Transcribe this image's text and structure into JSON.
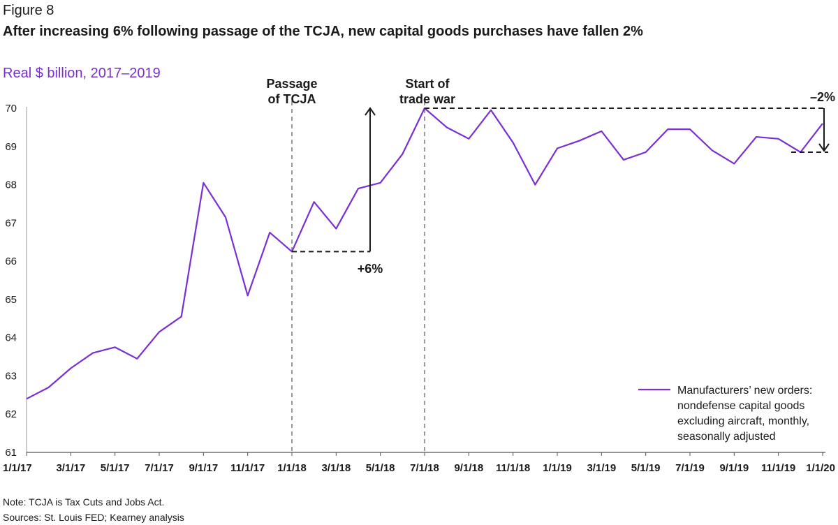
{
  "figure_label": "Figure 8",
  "title": "After increasing 6% following passage of the TCJA, new capital goods purchases have fallen 2%",
  "unit_label": "Real $ billion, 2017–2019",
  "notes": {
    "note": "Note: TCJA is Tax Cuts and Jobs Act.",
    "sources": "Sources: St. Louis FED; Kearney analysis"
  },
  "colors": {
    "series": "#7a2fd0",
    "text": "#1a1a1a",
    "dashed": "#9a9a9a"
  },
  "chart_data": {
    "type": "line",
    "title": "After increasing 6% following passage of the TCJA, new capital goods purchases have fallen 2%",
    "ylabel": "Real $ billion, 2017–2019",
    "ylim": [
      61,
      70
    ],
    "yticks": [
      61,
      62,
      63,
      64,
      65,
      66,
      67,
      68,
      69,
      70
    ],
    "xticks": [
      "1/1/17",
      "3/1/17",
      "5/1/17",
      "7/1/17",
      "9/1/17",
      "11/1/17",
      "1/1/18",
      "3/1/18",
      "5/1/18",
      "7/1/18",
      "9/1/18",
      "11/1/18",
      "1/1/19",
      "3/1/19",
      "5/1/19",
      "7/1/19",
      "9/1/19",
      "11/1/19",
      "1/1/20"
    ],
    "grid": false,
    "legend_position": "bottom-right",
    "x": [
      "1/1/17",
      "2/1/17",
      "3/1/17",
      "4/1/17",
      "5/1/17",
      "6/1/17",
      "7/1/17",
      "8/1/17",
      "9/1/17",
      "10/1/17",
      "11/1/17",
      "12/1/17",
      "1/1/18",
      "2/1/18",
      "3/1/18",
      "4/1/18",
      "5/1/18",
      "6/1/18",
      "7/1/18",
      "8/1/18",
      "9/1/18",
      "10/1/18",
      "11/1/18",
      "12/1/18",
      "1/1/19",
      "2/1/19",
      "3/1/19",
      "4/1/19",
      "5/1/19",
      "6/1/19",
      "7/1/19",
      "8/1/19",
      "9/1/19",
      "10/1/19",
      "11/1/19",
      "12/1/19",
      "1/1/20"
    ],
    "series": [
      {
        "name": "Manufacturers’ new orders: nondefense capital goods excluding aircraft, monthly, seasonally adjusted",
        "values": [
          62.4,
          62.7,
          63.2,
          63.6,
          63.75,
          63.45,
          64.15,
          64.55,
          68.05,
          67.15,
          65.1,
          66.75,
          66.25,
          67.55,
          66.85,
          67.9,
          68.05,
          68.8,
          70.0,
          69.5,
          69.2,
          69.95,
          69.1,
          68.0,
          68.95,
          69.15,
          69.4,
          68.65,
          68.85,
          69.45,
          69.45,
          68.9,
          68.55,
          69.25,
          69.2,
          68.85,
          69.6
        ]
      }
    ],
    "annotations": {
      "tcja_label": [
        "Passage",
        "of TCJA"
      ],
      "tcja_x": "1/1/18",
      "trade_war_label": [
        "Start of",
        "trade war"
      ],
      "trade_war_x": "7/1/18",
      "increase_label": "+6%",
      "increase_from": 66.25,
      "increase_to": 70.0,
      "decrease_label": "–2%",
      "decrease_from": 70.0,
      "decrease_to": 68.85
    }
  }
}
